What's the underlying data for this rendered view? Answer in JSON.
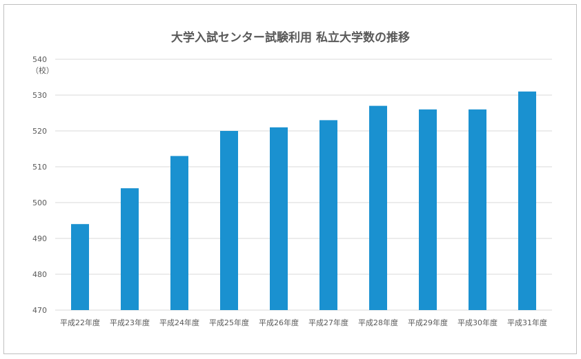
{
  "chart_data": {
    "type": "bar",
    "title": "大学入試センター試験利用 私立大学数の推移",
    "ylabel": "（校）",
    "xlabel": "",
    "categories": [
      "平成22年度",
      "平成23年度",
      "平成24年度",
      "平成25年度",
      "平成26年度",
      "平成27年度",
      "平成28年度",
      "平成29年度",
      "平成30年度",
      "平成31年度"
    ],
    "values": [
      494,
      504,
      513,
      520,
      521,
      523,
      527,
      526,
      526,
      531
    ],
    "ylim": [
      470,
      540
    ],
    "yticks": [
      470,
      480,
      490,
      500,
      510,
      520,
      530,
      540
    ],
    "grid": true,
    "legend": "none",
    "bar_color": "#1a91d0"
  }
}
